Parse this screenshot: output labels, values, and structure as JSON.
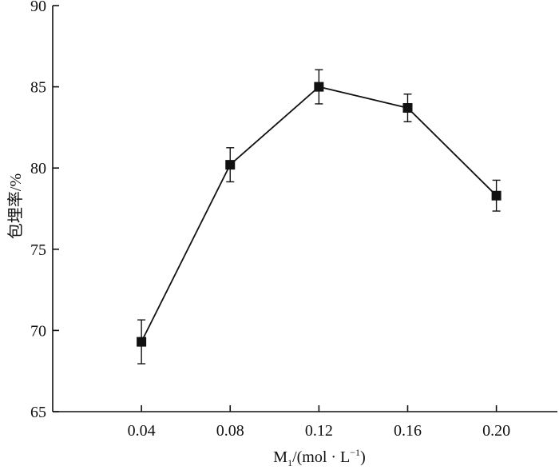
{
  "chart_data": {
    "type": "line",
    "title": "",
    "xlabel": "M1/(mol·L⁻¹)",
    "xlabel_parts": {
      "main": "M",
      "sub": "1",
      "mid": "/(mol · L",
      "sup": "−1",
      "end": ")"
    },
    "ylabel": "包埋率/%",
    "x": [
      0.04,
      0.08,
      0.12,
      0.16,
      0.2
    ],
    "x_tick_labels": [
      "0.04",
      "0.08",
      "0.12",
      "0.16",
      "0.20"
    ],
    "y_ticks": [
      65,
      70,
      75,
      80,
      85,
      90
    ],
    "y_tick_labels": [
      "65",
      "70",
      "75",
      "80",
      "85",
      "90"
    ],
    "ylim": [
      65,
      90
    ],
    "xlim": [
      0.0,
      0.2275
    ],
    "series": [
      {
        "values": [
          69.3,
          80.2,
          85.0,
          83.7,
          78.3
        ],
        "error": [
          1.35,
          1.05,
          1.05,
          0.85,
          0.95
        ],
        "marker": "square",
        "color": "#111111"
      }
    ],
    "grid": false,
    "legend": "none"
  }
}
